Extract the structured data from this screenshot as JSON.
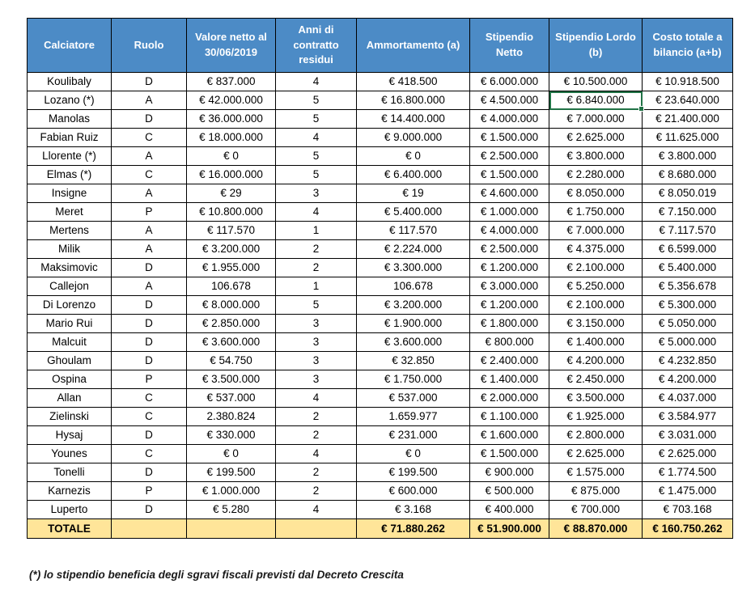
{
  "colors": {
    "header_bg": "#4C8BC6",
    "header_text": "#FFFFFF",
    "total_row_bg": "#FFE599",
    "selection_border": "#217346",
    "grid_border": "#000000"
  },
  "table": {
    "columns": [
      "Calciatore",
      "Ruolo",
      "Valore netto al 30/06/2019",
      "Anni di contratto residui",
      "Ammortamento (a)",
      "Stipendio Netto",
      "Stipendio Lordo (b)",
      "Costo totale a bilancio (a+b)"
    ],
    "rows": [
      [
        "Koulibaly",
        "D",
        "€ 837.000",
        "4",
        "€ 418.500",
        "€ 6.000.000",
        "€ 10.500.000",
        "€ 10.918.500"
      ],
      [
        "Lozano (*)",
        "A",
        "€ 42.000.000",
        "5",
        "€ 16.800.000",
        "€ 4.500.000",
        "€ 6.840.000",
        "€ 23.640.000"
      ],
      [
        "Manolas",
        "D",
        "€ 36.000.000",
        "5",
        "€ 14.400.000",
        "€ 4.000.000",
        "€ 7.000.000",
        "€ 21.400.000"
      ],
      [
        "Fabian Ruiz",
        "C",
        "€ 18.000.000",
        "4",
        "€ 9.000.000",
        "€ 1.500.000",
        "€ 2.625.000",
        "€ 11.625.000"
      ],
      [
        "Llorente (*)",
        "A",
        "€ 0",
        "5",
        "€ 0",
        "€ 2.500.000",
        "€ 3.800.000",
        "€ 3.800.000"
      ],
      [
        "Elmas (*)",
        "C",
        "€ 16.000.000",
        "5",
        "€ 6.400.000",
        "€ 1.500.000",
        "€ 2.280.000",
        "€ 8.680.000"
      ],
      [
        "Insigne",
        "A",
        "€ 29",
        "3",
        "€ 19",
        "€ 4.600.000",
        "€ 8.050.000",
        "€ 8.050.019"
      ],
      [
        "Meret",
        "P",
        "€ 10.800.000",
        "4",
        "€ 5.400.000",
        "€ 1.000.000",
        "€ 1.750.000",
        "€ 7.150.000"
      ],
      [
        "Mertens",
        "A",
        "€ 117.570",
        "1",
        "€ 117.570",
        "€ 4.000.000",
        "€ 7.000.000",
        "€ 7.117.570"
      ],
      [
        "Milik",
        "A",
        "€ 3.200.000",
        "2",
        "€ 2.224.000",
        "€ 2.500.000",
        "€ 4.375.000",
        "€ 6.599.000"
      ],
      [
        "Maksimovic",
        "D",
        "€ 1.955.000",
        "2",
        "€ 3.300.000",
        "€ 1.200.000",
        "€ 2.100.000",
        "€ 5.400.000"
      ],
      [
        "Callejon",
        "A",
        "106.678",
        "1",
        "106.678",
        "€ 3.000.000",
        "€ 5.250.000",
        "€ 5.356.678"
      ],
      [
        "Di Lorenzo",
        "D",
        "€ 8.000.000",
        "5",
        "€ 3.200.000",
        "€ 1.200.000",
        "€ 2.100.000",
        "€ 5.300.000"
      ],
      [
        "Mario Rui",
        "D",
        "€ 2.850.000",
        "3",
        "€ 1.900.000",
        "€ 1.800.000",
        "€ 3.150.000",
        "€ 5.050.000"
      ],
      [
        "Malcuit",
        "D",
        "€ 3.600.000",
        "3",
        "€ 3.600.000",
        "€ 800.000",
        "€ 1.400.000",
        "€ 5.000.000"
      ],
      [
        "Ghoulam",
        "D",
        "€ 54.750",
        "3",
        "€ 32.850",
        "€ 2.400.000",
        "€ 4.200.000",
        "€ 4.232.850"
      ],
      [
        "Ospina",
        "P",
        "€ 3.500.000",
        "3",
        "€ 1.750.000",
        "€ 1.400.000",
        "€ 2.450.000",
        "€ 4.200.000"
      ],
      [
        "Allan",
        "C",
        "€ 537.000",
        "4",
        "€ 537.000",
        "€ 2.000.000",
        "€ 3.500.000",
        "€ 4.037.000"
      ],
      [
        "Zielinski",
        "C",
        "2.380.824",
        "2",
        "1.659.977",
        "€ 1.100.000",
        "€ 1.925.000",
        "€ 3.584.977"
      ],
      [
        "Hysaj",
        "D",
        "€ 330.000",
        "2",
        "€ 231.000",
        "€ 1.600.000",
        "€ 2.800.000",
        "€ 3.031.000"
      ],
      [
        "Younes",
        "C",
        "€ 0",
        "4",
        "€ 0",
        "€ 1.500.000",
        "€ 2.625.000",
        "€ 2.625.000"
      ],
      [
        "Tonelli",
        "D",
        "€ 199.500",
        "2",
        "€ 199.500",
        "€ 900.000",
        "€ 1.575.000",
        "€ 1.774.500"
      ],
      [
        "Karnezis",
        "P",
        "€ 1.000.000",
        "2",
        "€ 600.000",
        "€ 500.000",
        "€ 875.000",
        "€ 1.475.000"
      ],
      [
        "Luperto",
        "D",
        "€ 5.280",
        "4",
        "€ 3.168",
        "€ 400.000",
        "€ 700.000",
        "€ 703.168"
      ]
    ],
    "total_row": [
      "TOTALE",
      "",
      "",
      "",
      "€ 71.880.262",
      "€ 51.900.000",
      "€ 88.870.000",
      "€ 160.750.262"
    ],
    "selected_cell": {
      "row_index": 1,
      "col_index": 6,
      "value": "€ 6.840.000"
    }
  },
  "footnote": "(*) lo stipendio beneficia degli sgravi fiscali previsti dal Decreto Crescita"
}
